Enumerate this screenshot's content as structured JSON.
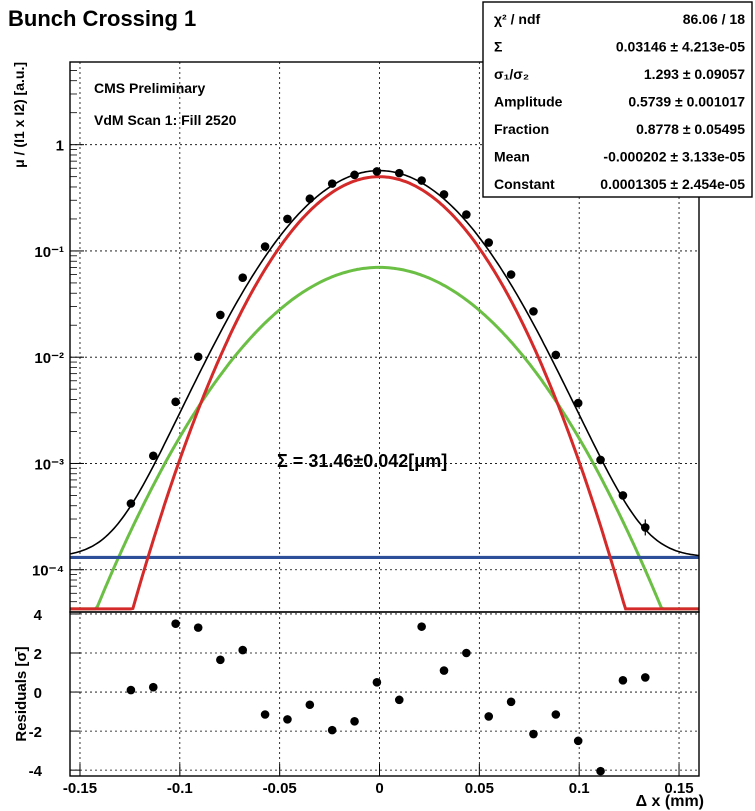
{
  "title": "Bunch Crossing 1",
  "stats_box": [
    {
      "label": "χ² / ndf",
      "value": "86.06 / 18"
    },
    {
      "label": "Σ",
      "value": "0.03146 ± 4.213e-05"
    },
    {
      "label": "σ₁/σ₂",
      "value": "1.293 ± 0.09057"
    },
    {
      "label": "Amplitude",
      "value": "0.5739 ± 0.001017"
    },
    {
      "label": "Fraction",
      "value": "0.8778 ± 0.05495"
    },
    {
      "label": "Mean",
      "value": "-0.000202 ± 3.133e-05"
    },
    {
      "label": "Constant",
      "value": "0.0001305 ± 2.454e-05"
    }
  ],
  "annotations": {
    "cms": "CMS Preliminary",
    "scan": "VdM Scan 1: Fill 2520",
    "sigma": "Σ = 31.46±0.042[μm]"
  },
  "colors": {
    "total_fit": "#000000",
    "narrow_gaussian": "#d42a2a",
    "wide_gaussian": "#6cbf45",
    "constant": "#2d4f9a",
    "points": "#000000"
  },
  "chart_data": [
    {
      "type": "scatter",
      "panel": "main",
      "ylabel": "μ / (I1 x I2) [a.u.]",
      "yscale": "log",
      "xlim": [
        -0.155,
        0.16
      ],
      "ylim": [
        4e-05,
        6
      ],
      "grid": true,
      "y_ticks": [
        {
          "value": 1,
          "label": "1"
        },
        {
          "value": 0.1,
          "label": "10⁻¹"
        },
        {
          "value": 0.01,
          "label": "10⁻²"
        },
        {
          "value": 0.001,
          "label": "10⁻³"
        },
        {
          "value": 0.0001,
          "label": "10⁻⁴"
        }
      ],
      "x": [
        -0.1245,
        -0.1133,
        -0.1021,
        -0.0908,
        -0.0797,
        -0.0685,
        -0.0573,
        -0.0461,
        -0.0349,
        -0.0237,
        -0.0125,
        -0.0013,
        0.0099,
        0.0211,
        0.0323,
        0.0435,
        0.0547,
        0.0659,
        0.0771,
        0.0883,
        0.0995,
        0.1107,
        0.1219,
        0.1331
      ],
      "y": [
        0.00042,
        0.00118,
        0.0038,
        0.0101,
        0.025,
        0.056,
        0.11,
        0.2,
        0.31,
        0.43,
        0.52,
        0.56,
        0.54,
        0.46,
        0.34,
        0.22,
        0.12,
        0.06,
        0.027,
        0.0105,
        0.0037,
        0.00108,
        0.0005,
        0.00025
      ],
      "series": [
        {
          "name": "",
          "description_color": "total_fit"
        },
        {
          "name": "",
          "description_color": "narrow_gaussian"
        },
        {
          "name": "",
          "description_color": "wide_gaussian"
        },
        {
          "name": "",
          "description_color": "constant"
        }
      ],
      "fit": {
        "constant": 0.0001305,
        "mean": -0.000202,
        "narrow": {
          "amplitude": 0.5,
          "sigma": 0.0285
        },
        "wide": {
          "amplitude": 0.07,
          "sigma": 0.0368
        }
      }
    },
    {
      "type": "scatter",
      "panel": "residuals",
      "xlabel": "Δ x (mm)",
      "ylabel": "Residuals [σ]",
      "xlim": [
        -0.155,
        0.16
      ],
      "ylim": [
        -4.3,
        4.1
      ],
      "grid": true,
      "x_ticks": [
        {
          "value": -0.15,
          "label": "-0.15"
        },
        {
          "value": -0.1,
          "label": "-0.1"
        },
        {
          "value": -0.05,
          "label": "-0.05"
        },
        {
          "value": 0,
          "label": "0"
        },
        {
          "value": 0.05,
          "label": "0.05"
        },
        {
          "value": 0.1,
          "label": "0.1"
        },
        {
          "value": 0.15,
          "label": "0.15"
        }
      ],
      "y_ticks": [
        {
          "value": 4,
          "label": "4"
        },
        {
          "value": 2,
          "label": "2"
        },
        {
          "value": 0,
          "label": "0"
        },
        {
          "value": -2,
          "label": "-2"
        },
        {
          "value": -4,
          "label": "-4"
        }
      ],
      "x": [
        -0.1245,
        -0.1133,
        -0.1021,
        -0.0908,
        -0.0797,
        -0.0685,
        -0.0573,
        -0.0461,
        -0.0349,
        -0.0237,
        -0.0125,
        -0.0013,
        0.0099,
        0.0211,
        0.0323,
        0.0435,
        0.0547,
        0.0659,
        0.0771,
        0.0883,
        0.0995,
        0.1107,
        0.1219,
        0.1331
      ],
      "y": [
        0.1,
        0.25,
        3.5,
        3.3,
        1.65,
        2.15,
        -1.15,
        -1.4,
        -0.65,
        -1.95,
        -1.5,
        0.5,
        -0.4,
        3.35,
        1.1,
        2.0,
        -1.25,
        -0.5,
        -2.15,
        -1.15,
        -2.5,
        -4.05,
        0.6,
        0.75
      ]
    }
  ]
}
